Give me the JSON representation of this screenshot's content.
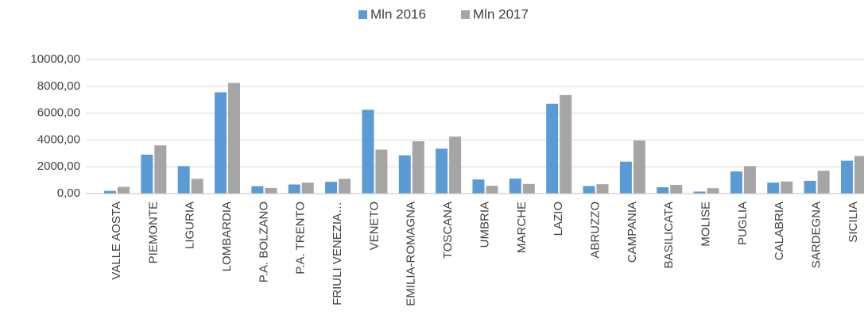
{
  "chart_data": {
    "type": "bar",
    "categories": [
      "VALLE AOSTA",
      "PIEMONTE",
      "LIGURIA",
      "LOMBARDIA",
      "P.A. BOLZANO",
      "P.A. TRENTO",
      "FRIULI VENEZIA…",
      "VENETO",
      "EMILIA-ROMAGNA",
      "TOSCANA",
      "UMBRIA",
      "MARCHE",
      "LAZIO",
      "ABRUZZO",
      "CAMPANIA",
      "BASILICATA",
      "MOLISE",
      "PUGLIA",
      "CALABRIA",
      "SARDEGNA",
      "SICILIA"
    ],
    "series": [
      {
        "name": "Mln 2016",
        "color": "#5b9bd5",
        "values": [
          200,
          2900,
          2050,
          7550,
          550,
          680,
          880,
          6250,
          2850,
          3350,
          1050,
          1120,
          6700,
          560,
          2380,
          470,
          150,
          1650,
          820,
          950,
          2450
        ]
      },
      {
        "name": "Mln 2017",
        "color": "#a5a5a5",
        "values": [
          500,
          3600,
          1100,
          8250,
          420,
          820,
          1100,
          3280,
          3900,
          4250,
          580,
          720,
          7350,
          700,
          3950,
          650,
          400,
          2050,
          900,
          1700,
          2800
        ]
      }
    ],
    "ylim": [
      0,
      10000
    ],
    "yticks": [
      {
        "value": 0,
        "label": "0,00"
      },
      {
        "value": 2000,
        "label": "2000,00"
      },
      {
        "value": 4000,
        "label": "4000,00"
      },
      {
        "value": 6000,
        "label": "6000,00"
      },
      {
        "value": 8000,
        "label": "8000,00"
      },
      {
        "value": 10000,
        "label": "10000,00"
      }
    ],
    "grid": true,
    "legend": "top"
  }
}
